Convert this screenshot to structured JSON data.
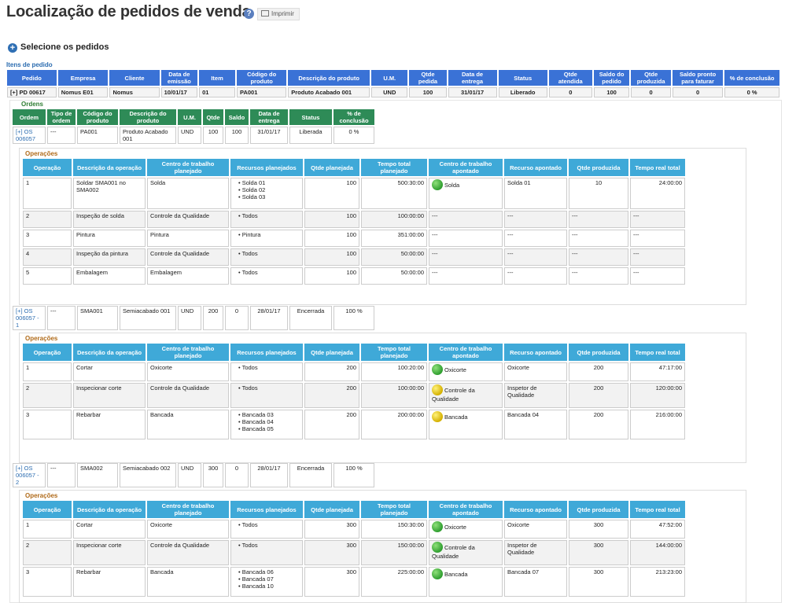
{
  "page": {
    "title": "Localização de pedidos de venda",
    "help": "?",
    "print_label": "Imprimir",
    "select_label": "Selecione os pedidos",
    "items_label": "Itens de pedido"
  },
  "order_headers": [
    "Pedido",
    "Empresa",
    "Cliente",
    "Data de emissão",
    "Item",
    "Código do produto",
    "Descrição do produto",
    "U.M.",
    "Qtde pedida",
    "Data de entrega",
    "Status",
    "Qtde atendida",
    "Saldo do pedido",
    "Qtde produzida",
    "Saldo pronto para faturar",
    "% de conclusão"
  ],
  "order_row": [
    "[+] PD 00617",
    "Nomus E01",
    "Nomus",
    "10/01/17",
    "01",
    "PA001",
    "Produto Acabado 001",
    "UND",
    "100",
    "31/01/17",
    "Liberado",
    "0",
    "100",
    "0",
    "0",
    "0 %"
  ],
  "ordens_label": "Ordens",
  "ordens_headers": [
    "Ordem",
    "Tipo de ordem",
    "Código do produto",
    "Descrição do produto",
    "U.M.",
    "Qtde",
    "Saldo",
    "Data de entrega",
    "Status",
    "% de conclusão"
  ],
  "ordens": [
    {
      "row": [
        "[+] OS 006057",
        "---",
        "PA001",
        "Produto Acabado 001",
        "UND",
        "100",
        "100",
        "31/01/17",
        "Liberada",
        "0 %"
      ]
    },
    {
      "row": [
        "[+] OS 006057 - 1",
        "---",
        "SMA001",
        "Semiacabado 001",
        "UND",
        "200",
        "0",
        "28/01/17",
        "Encerrada",
        "100 %"
      ]
    },
    {
      "row": [
        "[+] OS 006057 - 2",
        "---",
        "SMA002",
        "Semiacabado 002",
        "UND",
        "300",
        "0",
        "28/01/17",
        "Encerrada",
        "100 %"
      ]
    }
  ],
  "operacoes_label": "Operações",
  "op_headers_a": [
    "Operação",
    "Descrição da operação",
    "Centro de trabalho planejado",
    "Recursos planejados",
    "Qtde planejada",
    "Tempo total planejado",
    "Centro de trabalho apontado",
    "Recurso apontado",
    "Qtde produzida",
    "Tempo real total"
  ],
  "ops1": [
    {
      "op": "1",
      "desc": "Soldar SMA001 no SMA002",
      "centro": "Solda",
      "recursos": [
        "Solda 01",
        "Solda 02",
        "Solda 03"
      ],
      "qtde": "100",
      "tempo": "500:30:00",
      "apontado": "Solda",
      "dot": "green",
      "recurso_ap": "Solda 01",
      "qprod": "10",
      "treal": "24:00:00"
    },
    {
      "op": "2",
      "desc": "Inspeção de solda",
      "centro": "Controle da Qualidade",
      "recursos": [
        "Todos"
      ],
      "qtde": "100",
      "tempo": "100:00:00",
      "apontado": "---",
      "dot": "",
      "recurso_ap": "---",
      "qprod": "---",
      "treal": "---"
    },
    {
      "op": "3",
      "desc": "Pintura",
      "centro": "Pintura",
      "recursos": [
        "Pintura"
      ],
      "qtde": "100",
      "tempo": "351:00:00",
      "apontado": "---",
      "dot": "",
      "recurso_ap": "---",
      "qprod": "---",
      "treal": "---"
    },
    {
      "op": "4",
      "desc": "Inspeção da pintura",
      "centro": "Controle da Qualidade",
      "recursos": [
        "Todos"
      ],
      "qtde": "100",
      "tempo": "50:00:00",
      "apontado": "---",
      "dot": "",
      "recurso_ap": "---",
      "qprod": "---",
      "treal": "---"
    },
    {
      "op": "5",
      "desc": "Embalagem",
      "centro": "Embalagem",
      "recursos": [
        "Todos"
      ],
      "qtde": "100",
      "tempo": "50:00:00",
      "apontado": "---",
      "dot": "",
      "recurso_ap": "---",
      "qprod": "---",
      "treal": "---"
    }
  ],
  "ops2": [
    {
      "op": "1",
      "desc": "Cortar",
      "centro": "Oxicorte",
      "recursos": [
        "Todos"
      ],
      "qtde": "200",
      "tempo": "100:20:00",
      "apontado": "Oxicorte",
      "dot": "green",
      "recurso_ap": "Oxicorte",
      "qprod": "200",
      "treal": "47:17:00"
    },
    {
      "op": "2",
      "desc": "Inspecionar corte",
      "centro": "Controle da Qualidade",
      "recursos": [
        "Todos"
      ],
      "qtde": "200",
      "tempo": "100:00:00",
      "apontado": "Controle da Qualidade",
      "dot": "yellow",
      "recurso_ap": "Inspetor de Qualidade",
      "qprod": "200",
      "treal": "120:00:00"
    },
    {
      "op": "3",
      "desc": "Rebarbar",
      "centro": "Bancada",
      "recursos": [
        "Bancada 03",
        "Bancada 04",
        "Bancada 05"
      ],
      "qtde": "200",
      "tempo": "200:00:00",
      "apontado": "Bancada",
      "dot": "yellow",
      "recurso_ap": "Bancada 04",
      "qprod": "200",
      "treal": "216:00:00"
    }
  ],
  "ops3": [
    {
      "op": "1",
      "desc": "Cortar",
      "centro": "Oxicorte",
      "recursos": [
        "Todos"
      ],
      "qtde": "300",
      "tempo": "150:30:00",
      "apontado": "Oxicorte",
      "dot": "green",
      "recurso_ap": "Oxicorte",
      "qprod": "300",
      "treal": "47:52:00"
    },
    {
      "op": "2",
      "desc": "Inspecionar corte",
      "centro": "Controle da Qualidade",
      "recursos": [
        "Todos"
      ],
      "qtde": "300",
      "tempo": "150:00:00",
      "apontado": "Controle da Qualidade",
      "dot": "green",
      "recurso_ap": "Inspetor de Qualidade",
      "qprod": "300",
      "treal": "144:00:00"
    },
    {
      "op": "3",
      "desc": "Rebarbar",
      "centro": "Bancada",
      "recursos": [
        "Bancada 06",
        "Bancada 07",
        "Bancada 10"
      ],
      "qtde": "300",
      "tempo": "225:00:00",
      "apontado": "Bancada",
      "dot": "green",
      "recurso_ap": "Bancada 07",
      "qprod": "300",
      "treal": "213:23:00"
    }
  ],
  "colors": {
    "order_header": "#3a72d6",
    "ordens_header": "#2e8b57",
    "op_header": "#3fa9d8"
  }
}
